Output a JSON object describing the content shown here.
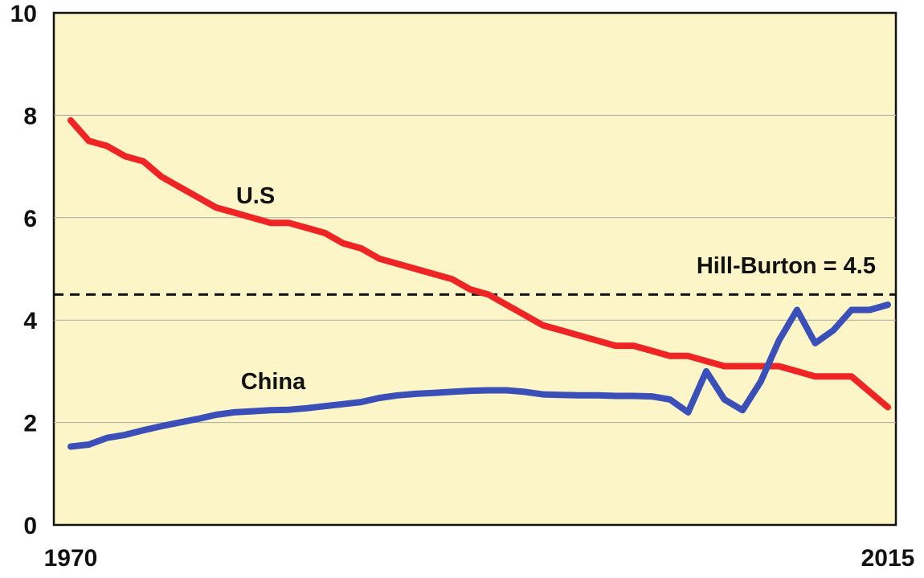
{
  "chart_data": {
    "type": "line",
    "title": "",
    "xlabel": "",
    "ylabel": "",
    "x_tick_labels": [
      "1970",
      "2015"
    ],
    "xlim": [
      1970,
      2015
    ],
    "ylim": [
      0,
      10
    ],
    "y_ticks": [
      0,
      2,
      4,
      6,
      8,
      10
    ],
    "y_tick_labels": [
      "0",
      "2",
      "4",
      "6",
      "8",
      "10"
    ],
    "grid": true,
    "plot_background": "#fbf5c8",
    "x": [
      1970,
      1971,
      1972,
      1973,
      1974,
      1975,
      1976,
      1977,
      1978,
      1979,
      1980,
      1981,
      1982,
      1983,
      1984,
      1985,
      1986,
      1987,
      1988,
      1989,
      1990,
      1991,
      1992,
      1993,
      1994,
      1995,
      1996,
      1997,
      1998,
      1999,
      2000,
      2001,
      2002,
      2003,
      2004,
      2005,
      2006,
      2007,
      2008,
      2009,
      2010,
      2011,
      2012,
      2013,
      2014,
      2015
    ],
    "series": [
      {
        "name": "U.S",
        "color": "#ee2524",
        "values": [
          7.9,
          7.5,
          7.4,
          7.2,
          7.1,
          6.8,
          6.6,
          6.4,
          6.2,
          6.1,
          6.0,
          5.9,
          5.9,
          5.8,
          5.7,
          5.5,
          5.4,
          5.2,
          5.1,
          5.0,
          4.9,
          4.8,
          4.6,
          4.5,
          4.3,
          4.1,
          3.9,
          3.8,
          3.7,
          3.6,
          3.5,
          3.5,
          3.4,
          3.3,
          3.3,
          3.2,
          3.1,
          3.1,
          3.1,
          3.1,
          3.0,
          2.9,
          2.9,
          2.9,
          2.6,
          2.3
        ]
      },
      {
        "name": "China",
        "color": "#3b4fb8",
        "values": [
          1.53,
          1.57,
          1.7,
          1.76,
          1.85,
          1.93,
          2.0,
          2.07,
          2.15,
          2.2,
          2.22,
          2.24,
          2.25,
          2.28,
          2.32,
          2.36,
          2.4,
          2.48,
          2.53,
          2.56,
          2.58,
          2.6,
          2.62,
          2.63,
          2.63,
          2.6,
          2.55,
          2.54,
          2.53,
          2.53,
          2.52,
          2.52,
          2.51,
          2.45,
          2.2,
          3.0,
          2.45,
          2.24,
          2.8,
          3.6,
          4.2,
          3.55,
          3.8,
          4.2,
          4.2,
          4.3
        ]
      }
    ],
    "reference_line": {
      "label": "Hill-Burton = 4.5",
      "value": 4.5,
      "style": "dashed",
      "color": "#111111"
    }
  }
}
